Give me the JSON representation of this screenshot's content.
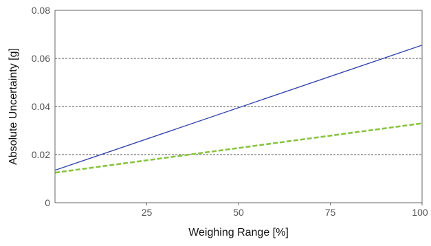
{
  "chart_data": {
    "type": "line",
    "title": "",
    "xlabel": "Weighing Range [%]",
    "ylabel": "Absolute Uncertainty [g]",
    "xlim": [
      0,
      100
    ],
    "ylim": [
      0,
      0.08
    ],
    "x_ticks": [
      25,
      50,
      75,
      100
    ],
    "x_tick_labels": [
      "25",
      "50",
      "75",
      "100"
    ],
    "y_ticks": [
      0,
      0.02,
      0.04,
      0.06,
      0.08
    ],
    "y_tick_labels": [
      "0",
      "0.02",
      "0.04",
      "0.06",
      "0.08"
    ],
    "grid": "horizontal dashed",
    "legend": "none",
    "series": [
      {
        "x": [
          0,
          100
        ],
        "values": [
          0.0135,
          0.0655
        ],
        "color": "#3344aa",
        "style": "solid"
      },
      {
        "x": [
          0,
          100
        ],
        "values": [
          0.0125,
          0.033
        ],
        "color": "#88c43f",
        "style": "dashed"
      }
    ]
  }
}
